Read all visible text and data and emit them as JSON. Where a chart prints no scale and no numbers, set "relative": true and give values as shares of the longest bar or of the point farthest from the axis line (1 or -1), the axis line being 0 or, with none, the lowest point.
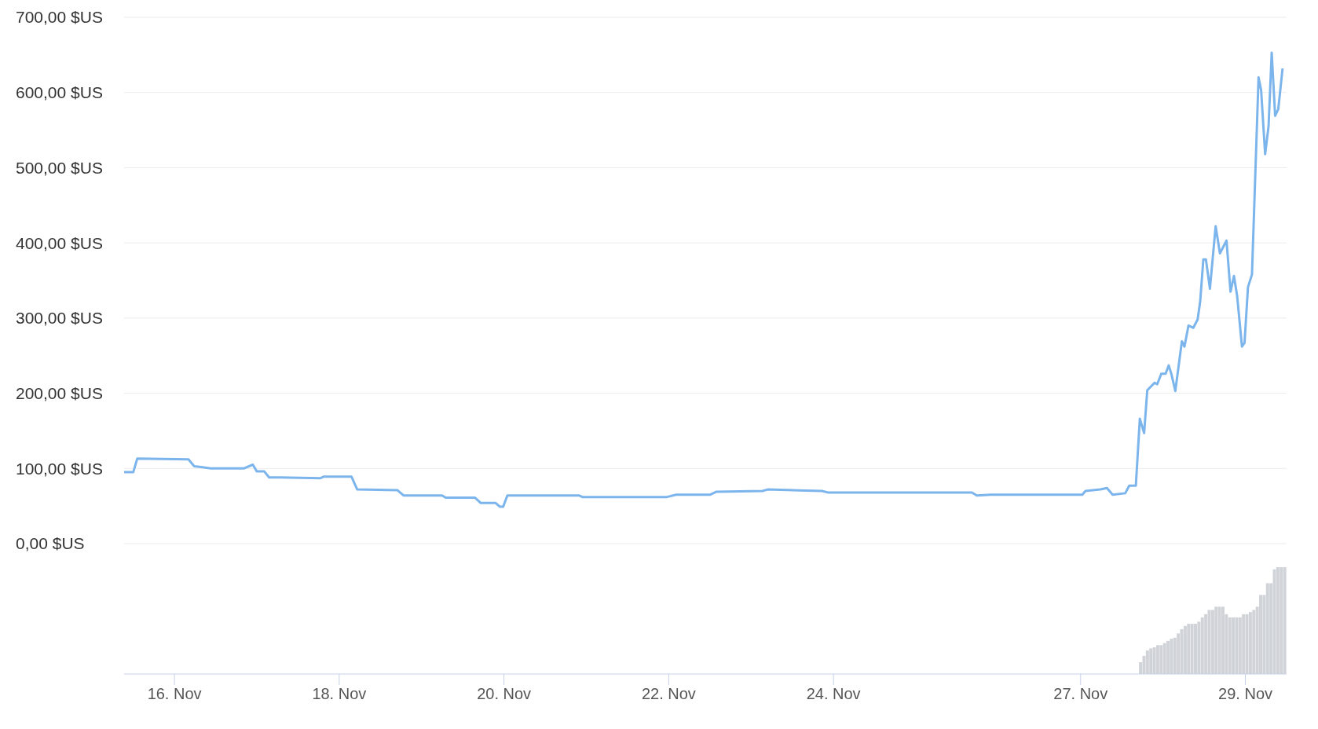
{
  "chart_data": [
    {
      "type": "line",
      "grid": "y",
      "tick_labels": "y",
      "xlim": [
        "--11-15T09:20",
        "--11-29T12:00"
      ],
      "ylim": [
        0,
        700
      ],
      "yticks": [
        {
          "value": 0,
          "label": "0,00 $US"
        },
        {
          "value": 100,
          "label": "100,00 $US"
        },
        {
          "value": 200,
          "label": "200,00 $US"
        },
        {
          "value": 300,
          "label": "300,00 $US"
        },
        {
          "value": 400,
          "label": "400,00 $US"
        },
        {
          "value": 500,
          "label": "500,00 $US"
        },
        {
          "value": 600,
          "label": "600,00 $US"
        },
        {
          "value": 700,
          "label": "700,00 $US"
        }
      ],
      "series": [
        {
          "color": "#7cb5ec",
          "x": [
            "--11-15T09:20",
            "--11-15T12:00",
            "--11-15T13:10",
            "--11-16T04:05",
            "--11-16T05:45",
            "--11-16T10:35",
            "--11-16T20:10",
            "--11-16T22:50",
            "--11-17T00:00",
            "--11-17T02:10",
            "--11-17T03:35",
            "--11-17T06:40",
            "--11-17T18:30",
            "--11-17T19:25",
            "--11-18T03:35",
            "--11-18T05:15",
            "--11-18T17:00",
            "--11-18T18:45",
            "--11-19T06:00",
            "--11-19T07:00",
            "--11-19T15:35",
            "--11-19T17:15",
            "--11-19T21:35",
            "--11-19T22:50",
            "--11-19T23:45",
            "--11-20T01:00",
            "--11-20T21:50",
            "--11-20T22:50",
            "--11-21T23:30",
            "--11-22T02:10",
            "--11-22T12:00",
            "--11-22T13:55",
            "--11-23T03:20",
            "--11-23T04:50",
            "--11-23T20:40",
            "--11-23T22:20",
            "--11-25T16:20",
            "--11-25T17:45",
            "--11-25T21:50",
            "--11-27T00:30",
            "--11-27T01:25",
            "--11-27T05:45",
            "--11-27T07:40",
            "--11-27T09:20",
            "--11-27T13:00",
            "--11-27T14:10",
            "--11-27T16:05",
            "--11-27T17:15",
            "--11-27T18:30",
            "--11-27T19:25",
            "--11-27T21:35",
            "--11-27T22:20",
            "--11-27T23:30",
            "--11-28T00:45",
            "--11-28T01:40",
            "--11-28T02:25",
            "--11-28T03:35",
            "--11-28T05:30",
            "--11-28T06:15",
            "--11-28T07:25",
            "--11-28T08:50",
            "--11-28T10:05",
            "--11-28T10:50",
            "--11-28T11:45",
            "--11-28T12:30",
            "--11-28T13:40",
            "--11-28T15:20",
            "--11-28T16:35",
            "--11-28T18:30",
            "--11-28T19:40",
            "--11-28T20:40",
            "--11-28T21:35",
            "--11-28T23:00",
            "--11-28T23:45",
            "--11-29T00:45",
            "--11-29T01:55",
            "--11-29T03:50",
            "--11-29T04:35",
            "--11-29T05:45",
            "--11-29T06:45",
            "--11-29T07:40",
            "--11-29T08:40",
            "--11-29T09:35",
            "--11-29T10:50"
          ],
          "values": [
            95,
            95,
            113,
            112,
            103,
            100,
            100,
            105,
            96,
            96,
            88,
            88,
            87,
            89,
            89,
            72,
            71,
            64,
            64,
            61,
            61,
            54,
            54,
            49,
            49,
            64,
            64,
            62,
            62,
            65,
            65,
            69,
            70,
            72,
            70,
            68,
            68,
            64,
            65,
            65,
            70,
            72,
            74,
            65,
            67,
            77,
            77,
            166,
            147,
            204,
            214,
            212,
            226,
            226,
            237,
            226,
            203,
            269,
            262,
            290,
            287,
            298,
            322,
            378,
            378,
            339,
            422,
            386,
            403,
            335,
            356,
            330,
            262,
            267,
            341,
            358,
            620,
            603,
            518,
            555,
            653,
            569,
            578,
            632
          ]
        }
      ]
    },
    {
      "type": "bar",
      "relative": true,
      "tick_labels": "x",
      "xlim": [
        "--11-15T09:20",
        "--11-29T12:00"
      ],
      "xticks": [
        {
          "value": "--11-16",
          "label": "16. Nov"
        },
        {
          "value": "--11-18",
          "label": "18. Nov"
        },
        {
          "value": "--11-20",
          "label": "20. Nov"
        },
        {
          "value": "--11-22",
          "label": "22. Nov"
        },
        {
          "value": "--11-24",
          "label": "24. Nov"
        },
        {
          "value": "--11-27",
          "label": "27. Nov"
        },
        {
          "value": "--11-29",
          "label": "29. Nov"
        }
      ],
      "series": [
        {
          "color": "#d0d3d8",
          "x": [
            "--11-27T17:30",
            "--11-27T18:30",
            "--11-27T19:30",
            "--11-27T20:30",
            "--11-27T21:30",
            "--11-27T22:30",
            "--11-27T23:30",
            "--11-28T00:30",
            "--11-28T01:30",
            "--11-28T02:30",
            "--11-28T03:30",
            "--11-28T04:30",
            "--11-28T05:30",
            "--11-28T06:30",
            "--11-28T07:30",
            "--11-28T08:30",
            "--11-28T09:30",
            "--11-28T10:30",
            "--11-28T11:30",
            "--11-28T12:30",
            "--11-28T13:30",
            "--11-28T14:30",
            "--11-28T15:30",
            "--11-28T16:30",
            "--11-28T17:30",
            "--11-28T18:30",
            "--11-28T19:30",
            "--11-28T20:30",
            "--11-28T21:30",
            "--11-28T22:30",
            "--11-28T23:30",
            "--11-29T00:30",
            "--11-29T01:30",
            "--11-29T02:30",
            "--11-29T03:30",
            "--11-29T04:30",
            "--11-29T05:30",
            "--11-29T06:30",
            "--11-29T07:30",
            "--11-29T08:30",
            "--11-29T09:30",
            "--11-29T10:30",
            "--11-29T11:30"
          ],
          "values": [
            0.11,
            0.17,
            0.22,
            0.24,
            0.25,
            0.27,
            0.27,
            0.29,
            0.31,
            0.33,
            0.34,
            0.38,
            0.42,
            0.45,
            0.47,
            0.47,
            0.47,
            0.49,
            0.53,
            0.56,
            0.6,
            0.6,
            0.63,
            0.63,
            0.63,
            0.56,
            0.53,
            0.53,
            0.53,
            0.53,
            0.56,
            0.56,
            0.58,
            0.6,
            0.63,
            0.74,
            0.74,
            0.85,
            0.85,
            0.98,
            1,
            1,
            1
          ]
        }
      ]
    }
  ]
}
